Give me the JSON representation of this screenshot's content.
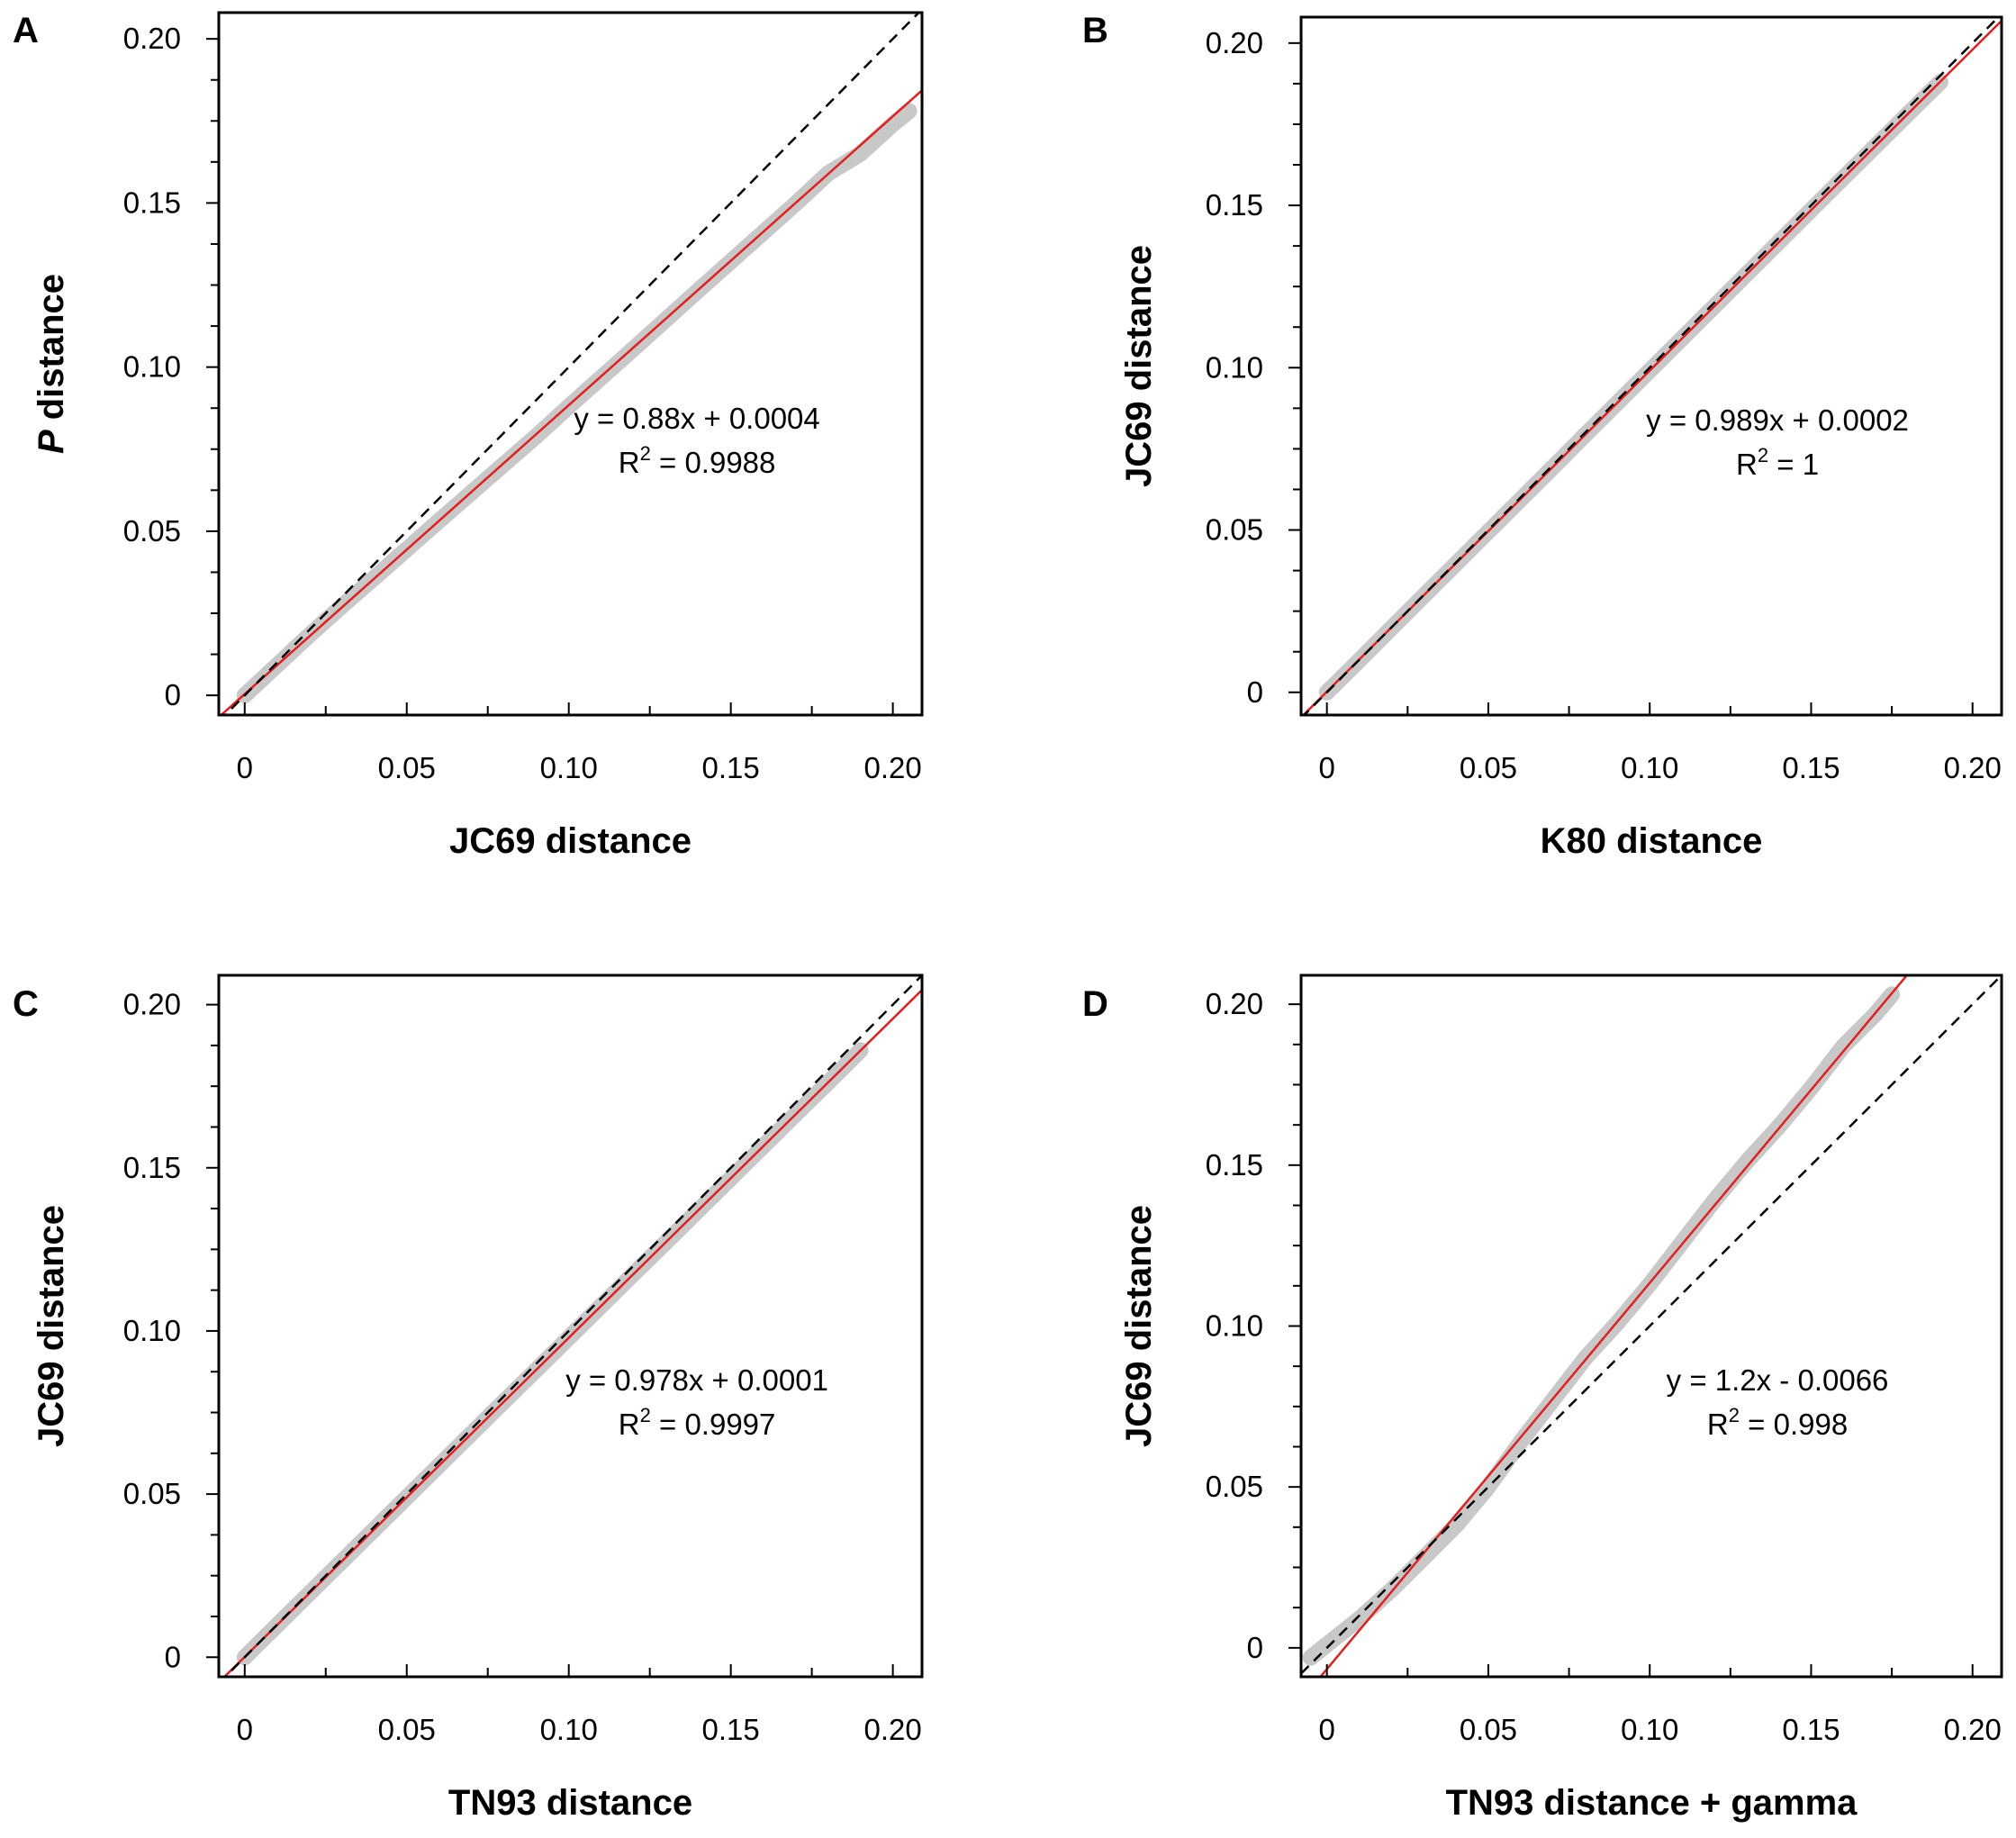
{
  "chart_data": [
    {
      "panel_label": "A",
      "type": "scatter",
      "title": "",
      "xlabel": "JC69 distance",
      "ylabel_italic": "P",
      "ylabel": " distance",
      "xlim": [
        -0.008,
        0.209
      ],
      "ylim": [
        -0.006,
        0.208
      ],
      "xticks": [
        0,
        0.05,
        0.1,
        0.15,
        0.2
      ],
      "xtick_labels": [
        "0",
        "0.05",
        "0.10",
        "0.15",
        "0.20"
      ],
      "yticks": [
        0,
        0.05,
        0.1,
        0.15,
        0.2
      ],
      "ytick_labels": [
        "0",
        "0.05",
        "0.10",
        "0.15",
        "0.20"
      ],
      "series": [
        {
          "name": "pairwise distances",
          "kind": "points",
          "color": "#c8c8c8",
          "x": [
            0.0,
            0.01,
            0.02,
            0.03,
            0.04,
            0.05,
            0.06,
            0.07,
            0.08,
            0.09,
            0.1,
            0.11,
            0.12,
            0.13,
            0.14,
            0.15,
            0.16,
            0.17,
            0.18,
            0.19,
            0.2,
            0.205
          ],
          "y": [
            0.0,
            0.0092,
            0.0184,
            0.0272,
            0.0358,
            0.0445,
            0.0532,
            0.0618,
            0.0704,
            0.079,
            0.088,
            0.0968,
            0.1056,
            0.1145,
            0.1234,
            0.1322,
            0.141,
            0.1498,
            0.159,
            0.165,
            0.174,
            0.178
          ]
        },
        {
          "name": "regression",
          "kind": "line",
          "color": "#e02020",
          "slope": 0.88,
          "intercept": 0.0004
        },
        {
          "name": "y = x",
          "kind": "dashed",
          "color": "#000000",
          "slope": 1,
          "intercept": 0
        }
      ],
      "equation": "y = 0.88x + 0.0004",
      "r2_prefix": "R",
      "r2_sup": "2",
      "r2_value": " = 0.9988"
    },
    {
      "panel_label": "B",
      "type": "scatter",
      "title": "",
      "xlabel": "K80 distance",
      "ylabel_italic": "",
      "ylabel": "JC69 distance",
      "xlim": [
        -0.008,
        0.209
      ],
      "ylim": [
        -0.007,
        0.208
      ],
      "xticks": [
        0,
        0.05,
        0.1,
        0.15,
        0.2
      ],
      "xtick_labels": [
        "0",
        "0.05",
        "0.10",
        "0.15",
        "0.20"
      ],
      "yticks": [
        0,
        0.05,
        0.1,
        0.15,
        0.2
      ],
      "ytick_labels": [
        "0",
        "0.05",
        "0.10",
        "0.15",
        "0.20"
      ],
      "series": [
        {
          "name": "pairwise distances",
          "kind": "points",
          "color": "#c8c8c8",
          "x": [
            0.0,
            0.01,
            0.02,
            0.03,
            0.04,
            0.05,
            0.06,
            0.07,
            0.08,
            0.09,
            0.1,
            0.11,
            0.12,
            0.13,
            0.14,
            0.15,
            0.16,
            0.17,
            0.18,
            0.19
          ],
          "y": [
            0.0,
            0.0098,
            0.0198,
            0.0297,
            0.0396,
            0.0495,
            0.0594,
            0.0693,
            0.0793,
            0.0892,
            0.0991,
            0.109,
            0.1189,
            0.1288,
            0.1387,
            0.1486,
            0.1585,
            0.1683,
            0.1782,
            0.188
          ]
        },
        {
          "name": "regression",
          "kind": "line",
          "color": "#e02020",
          "slope": 0.989,
          "intercept": 0.0002
        },
        {
          "name": "y = x",
          "kind": "dashed",
          "color": "#000000",
          "slope": 1,
          "intercept": 0
        }
      ],
      "equation": "y = 0.989x + 0.0002",
      "r2_prefix": "R",
      "r2_sup": "2",
      "r2_value": " = 1"
    },
    {
      "panel_label": "C",
      "type": "scatter",
      "title": "",
      "xlabel": "TN93 distance",
      "ylabel_italic": "",
      "ylabel": "JC69 distance",
      "xlim": [
        -0.008,
        0.209
      ],
      "ylim": [
        -0.006,
        0.209
      ],
      "xticks": [
        0,
        0.05,
        0.1,
        0.15,
        0.2
      ],
      "xtick_labels": [
        "0",
        "0.05",
        "0.10",
        "0.15",
        "0.20"
      ],
      "yticks": [
        0,
        0.05,
        0.1,
        0.15,
        0.2
      ],
      "ytick_labels": [
        "0",
        "0.05",
        "0.10",
        "0.15",
        "0.20"
      ],
      "series": [
        {
          "name": "pairwise distances",
          "kind": "points",
          "color": "#c8c8c8",
          "x": [
            0.0,
            0.01,
            0.02,
            0.03,
            0.04,
            0.05,
            0.06,
            0.07,
            0.08,
            0.09,
            0.1,
            0.11,
            0.12,
            0.13,
            0.14,
            0.15,
            0.16,
            0.17,
            0.18,
            0.19
          ],
          "y": [
            0.0,
            0.0098,
            0.0196,
            0.0294,
            0.0392,
            0.049,
            0.0588,
            0.0686,
            0.0784,
            0.0881,
            0.0979,
            0.1077,
            0.1175,
            0.1272,
            0.137,
            0.1468,
            0.1566,
            0.1664,
            0.1761,
            0.186
          ]
        },
        {
          "name": "regression",
          "kind": "line",
          "color": "#e02020",
          "slope": 0.978,
          "intercept": 0.0001
        },
        {
          "name": "y = x",
          "kind": "dashed",
          "color": "#000000",
          "slope": 1,
          "intercept": 0
        }
      ],
      "equation": "y = 0.978x + 0.0001",
      "r2_prefix": "R",
      "r2_sup": "2",
      "r2_value": " = 0.9997"
    },
    {
      "panel_label": "D",
      "type": "scatter",
      "title": "",
      "xlabel": "TN93 distance + gamma",
      "ylabel_italic": "",
      "ylabel": "JC69 distance",
      "xlim": [
        -0.008,
        0.209
      ],
      "ylim": [
        -0.009,
        0.209
      ],
      "xticks": [
        0,
        0.05,
        0.1,
        0.15,
        0.2
      ],
      "xtick_labels": [
        "0",
        "0.05",
        "0.10",
        "0.15",
        "0.20"
      ],
      "yticks": [
        0,
        0.05,
        0.1,
        0.15,
        0.2
      ],
      "ytick_labels": [
        "0",
        "0.05",
        "0.10",
        "0.15",
        "0.20"
      ],
      "series": [
        {
          "name": "pairwise distances",
          "kind": "points",
          "color": "#c8c8c8",
          "x": [
            -0.005,
            0.0,
            0.01,
            0.02,
            0.03,
            0.04,
            0.05,
            0.06,
            0.07,
            0.08,
            0.09,
            0.1,
            0.11,
            0.12,
            0.13,
            0.14,
            0.15,
            0.16,
            0.17,
            0.175
          ],
          "y": [
            -0.003,
            0.001,
            0.009,
            0.018,
            0.028,
            0.038,
            0.05,
            0.064,
            0.077,
            0.09,
            0.101,
            0.113,
            0.126,
            0.139,
            0.151,
            0.162,
            0.174,
            0.187,
            0.197,
            0.203
          ]
        },
        {
          "name": "regression",
          "kind": "line",
          "color": "#e02020",
          "slope": 1.2,
          "intercept": -0.0066
        },
        {
          "name": "y = x",
          "kind": "dashed",
          "color": "#000000",
          "slope": 1,
          "intercept": 0
        }
      ],
      "equation": "y = 1.2x - 0.0066",
      "r2_prefix": "R",
      "r2_sup": "2",
      "r2_value": " = 0.998"
    }
  ]
}
